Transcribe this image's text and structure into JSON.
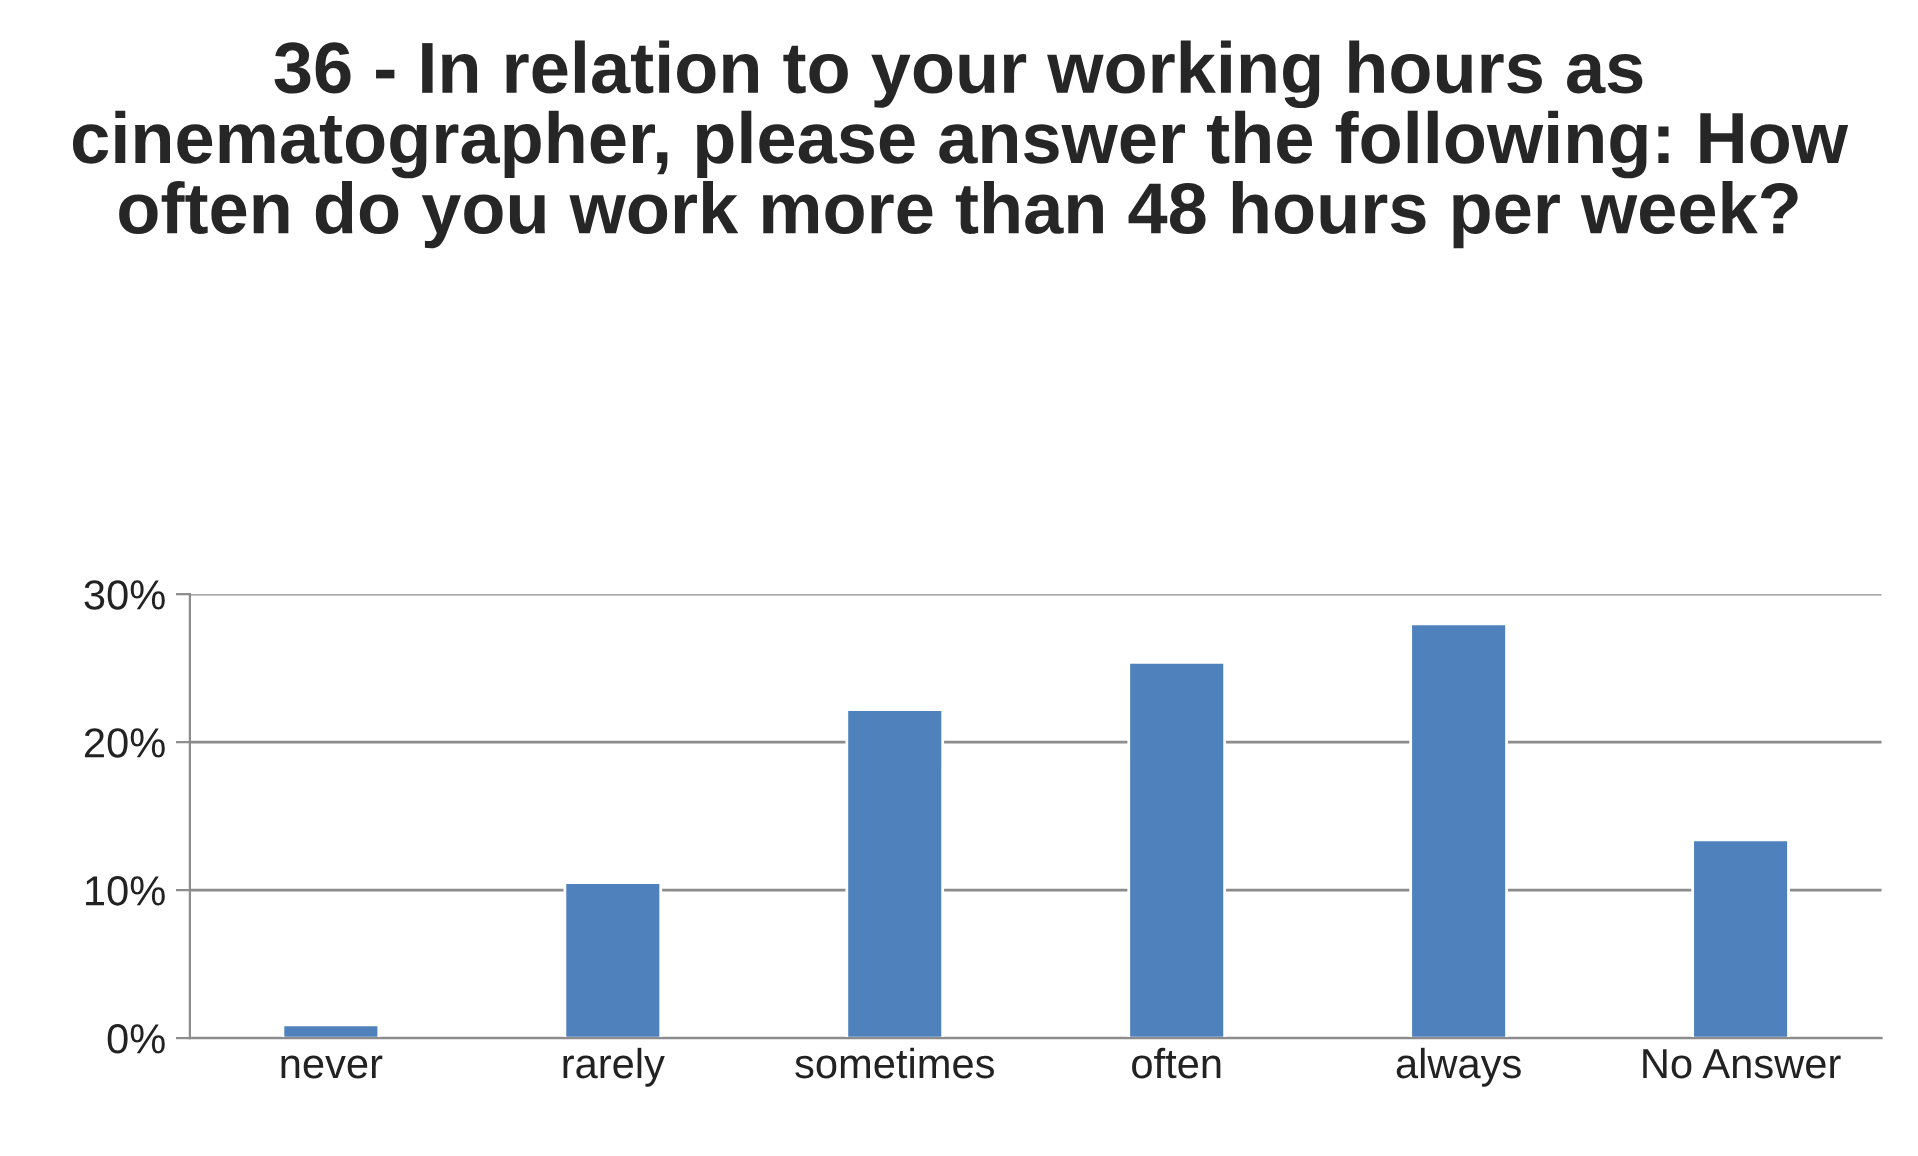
{
  "chart_data": {
    "type": "bar",
    "title": "36 - In relation to your working hours as cinematographer, please answer the following: How often do you work more than 48 hours per week?",
    "categories": [
      "never",
      "rarely",
      "sometimes",
      "often",
      "always",
      "No Answer"
    ],
    "values": [
      0.9,
      10.5,
      22.2,
      25.4,
      28.0,
      13.4
    ],
    "color": "#4f81bd",
    "ylim": [
      0,
      30
    ],
    "yticks": [
      {
        "value": 0,
        "label": "0%"
      },
      {
        "value": 10,
        "label": "10%"
      },
      {
        "value": 20,
        "label": "20%"
      },
      {
        "value": 30,
        "label": "30%"
      }
    ],
    "grid": "y",
    "legend": false
  }
}
